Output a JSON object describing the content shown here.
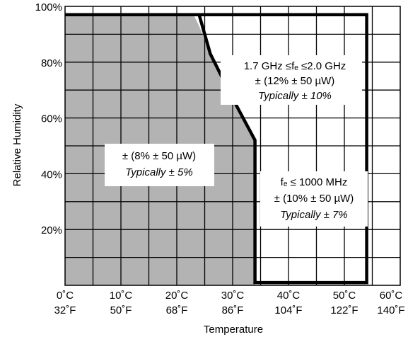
{
  "chart_data": {
    "type": "area",
    "xlabel": "Temperature",
    "ylabel": "Relative Humidity",
    "xlim": [
      0,
      60
    ],
    "ylim": [
      0,
      100
    ],
    "x_ticks": [
      {
        "value": 0,
        "c": "0˚C",
        "f": "32˚F"
      },
      {
        "value": 10,
        "c": "10˚C",
        "f": "50˚F"
      },
      {
        "value": 20,
        "c": "20˚C",
        "f": "68˚F"
      },
      {
        "value": 30,
        "c": "30˚C",
        "f": "86˚F"
      },
      {
        "value": 40,
        "c": "40˚C",
        "f": "104˚F"
      },
      {
        "value": 50,
        "c": "50˚C",
        "f": "122˚F"
      },
      {
        "value": 60,
        "c": "60˚C",
        "f": "140˚F"
      }
    ],
    "y_ticks": [
      {
        "value": 20,
        "label": "20%"
      },
      {
        "value": 40,
        "label": "40%"
      },
      {
        "value": 60,
        "label": "60%"
      },
      {
        "value": 80,
        "label": "80%"
      },
      {
        "value": 100,
        "label": "100%"
      }
    ],
    "grid": true,
    "grid_x_step": 5,
    "grid_y_step": 10,
    "shaded_region": {
      "fill": "#b3b3b3",
      "boundary": [
        [
          0,
          97
        ],
        [
          23,
          97
        ],
        [
          24,
          93
        ],
        [
          26,
          83
        ],
        [
          28,
          75
        ],
        [
          30,
          67
        ],
        [
          34,
          53
        ],
        [
          34,
          0
        ],
        [
          0,
          0
        ]
      ]
    },
    "outer_boundary": [
      [
        0,
        97
      ],
      [
        24,
        97
      ],
      [
        26,
        83
      ],
      [
        30,
        67
      ],
      [
        34,
        52
      ],
      [
        34,
        1
      ],
      [
        54,
        1
      ],
      [
        54,
        97
      ],
      [
        24,
        97
      ]
    ],
    "annotations": [
      {
        "lines": [
          "± (8% ± 50 µW)",
          "Typically ± 5%"
        ]
      },
      {
        "lines": [
          "1.7 GHz ≤fₑ ≤2.0 GHz",
          "± (12% ± 50 µW)",
          "Typically ± 10%"
        ]
      },
      {
        "lines": [
          "fₑ ≤ 1000 MHz",
          "± (10% ± 50 µW)",
          "Typically ± 7%"
        ]
      }
    ]
  },
  "colors": {
    "shade": "#b3b3b3",
    "grid": "#000000",
    "boundary": "#000000"
  }
}
